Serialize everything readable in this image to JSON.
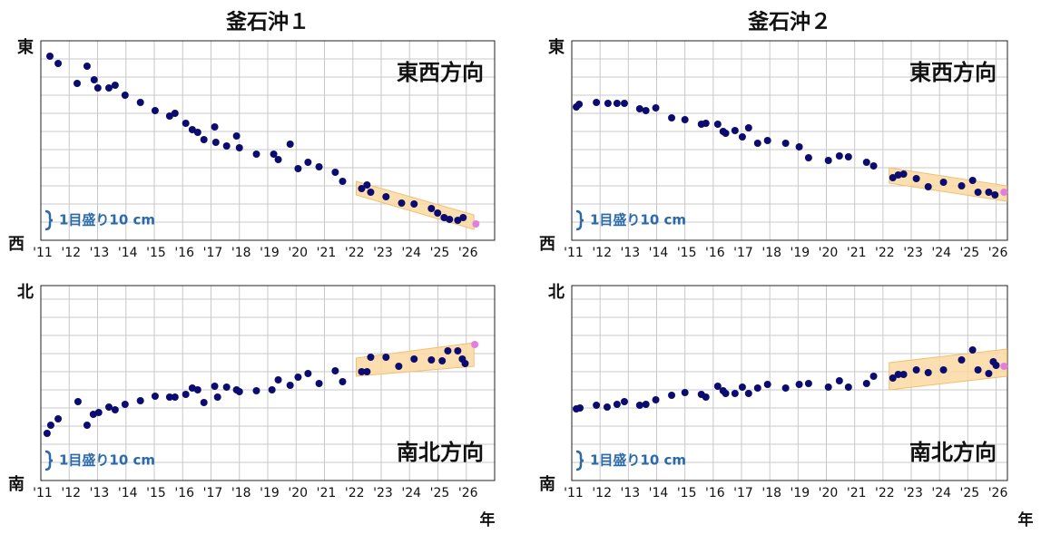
{
  "chart_data": [
    {
      "type": "scatter",
      "title": "釜石沖１",
      "y_top_label": "東",
      "y_bottom_label": "西",
      "annotation": "東西方向",
      "scale_note": "1目盛り10 cm",
      "xlim": [
        2011,
        2027
      ],
      "xticks": [
        {
          "value": 2011,
          "label": "'11"
        },
        {
          "value": 2012,
          "label": "'12"
        },
        {
          "value": 2013,
          "label": "'13"
        },
        {
          "value": 2014,
          "label": "'14"
        },
        {
          "value": 2015,
          "label": "'15"
        },
        {
          "value": 2016,
          "label": "'16"
        },
        {
          "value": 2017,
          "label": "'17"
        },
        {
          "value": 2018,
          "label": "'18"
        },
        {
          "value": 2019,
          "label": "'19"
        },
        {
          "value": 2020,
          "label": "'20"
        },
        {
          "value": 2021,
          "label": "'21"
        },
        {
          "value": 2022,
          "label": "'22"
        },
        {
          "value": 2023,
          "label": "'23"
        },
        {
          "value": 2024,
          "label": "'24"
        },
        {
          "value": 2025,
          "label": "'25"
        },
        {
          "value": 2026,
          "label": "'26"
        }
      ],
      "ylim": [
        0,
        110
      ],
      "yticks": [
        0,
        10,
        20,
        30,
        40,
        50,
        60,
        70,
        80,
        90,
        100,
        110
      ],
      "grid": true,
      "band": {
        "color": "#fbd9a3",
        "x": [
          2022.12,
          2026.27
        ],
        "upper": [
          32.5,
          14
        ],
        "lower": [
          25,
          6
        ]
      },
      "series": [
        {
          "color": "#0c0c70",
          "x": [
            2011.32,
            2011.61,
            2012.28,
            2012.63,
            2012.88,
            2013.01,
            2013.4,
            2013.62,
            2013.97,
            2014.51,
            2015.03,
            2015.54,
            2015.73,
            2016.11,
            2016.34,
            2016.53,
            2016.75,
            2017.13,
            2017.17,
            2017.55,
            2017.9,
            2018.0,
            2018.6,
            2019.21,
            2019.37,
            2019.79,
            2020.07,
            2020.42,
            2020.81,
            2021.38,
            2021.64,
            2022.31,
            2022.5,
            2022.63,
            2023.17,
            2023.72,
            2024.16,
            2024.77,
            2024.99,
            2025.22,
            2025.41,
            2025.7,
            2025.89
          ],
          "values": [
            101.5,
            97.5,
            86.5,
            96,
            88.5,
            84,
            84,
            85.5,
            80,
            76,
            71.5,
            68.5,
            70,
            64.5,
            61,
            59.5,
            55.5,
            62.5,
            54,
            52,
            57.5,
            51,
            47.5,
            47.5,
            44.5,
            53,
            39.5,
            43,
            40.5,
            37.5,
            32.5,
            28.5,
            30.5,
            26.5,
            24,
            20.5,
            20,
            17.5,
            15,
            12.5,
            11.5,
            11,
            12.5
          ]
        },
        {
          "color": "#e07fe0",
          "x": [
            2026.34
          ],
          "values": [
            9
          ]
        }
      ]
    },
    {
      "type": "scatter",
      "title": "釜石沖２",
      "y_top_label": "東",
      "y_bottom_label": "西",
      "annotation": "東西方向",
      "scale_note": "1目盛り10 cm",
      "xlim": [
        2011,
        2026.4
      ],
      "xticks": [
        {
          "value": 2011,
          "label": "'11"
        },
        {
          "value": 2012,
          "label": "'12"
        },
        {
          "value": 2013,
          "label": "'13"
        },
        {
          "value": 2014,
          "label": "'14"
        },
        {
          "value": 2015,
          "label": "'15"
        },
        {
          "value": 2016,
          "label": "'16"
        },
        {
          "value": 2017,
          "label": "'17"
        },
        {
          "value": 2018,
          "label": "'18"
        },
        {
          "value": 2019,
          "label": "'19"
        },
        {
          "value": 2020,
          "label": "'20"
        },
        {
          "value": 2021,
          "label": "'21"
        },
        {
          "value": 2022,
          "label": "'22"
        },
        {
          "value": 2023,
          "label": "'23"
        },
        {
          "value": 2024,
          "label": "'24"
        },
        {
          "value": 2025,
          "label": "'25"
        },
        {
          "value": 2026,
          "label": "'26"
        }
      ],
      "ylim": [
        0,
        110
      ],
      "yticks": [
        0,
        10,
        20,
        30,
        40,
        50,
        60,
        70,
        80,
        90,
        100,
        110
      ],
      "grid": true,
      "band": {
        "color": "#fbd9a3",
        "x": [
          2022.22,
          2026.38
        ],
        "upper": [
          40,
          30
        ],
        "lower": [
          31.5,
          21.5
        ]
      },
      "series": [
        {
          "color": "#0c0c70",
          "x": [
            2011.16,
            2011.26,
            2011.87,
            2012.28,
            2012.6,
            2012.86,
            2013.4,
            2013.62,
            2013.97,
            2014.53,
            2015.0,
            2015.58,
            2015.74,
            2016.16,
            2016.35,
            2016.44,
            2016.77,
            2017.03,
            2017.25,
            2017.57,
            2017.92,
            2018.56,
            2019.04,
            2019.37,
            2020.07,
            2020.46,
            2020.78,
            2021.42,
            2021.67,
            2022.35,
            2022.54,
            2022.73,
            2023.18,
            2023.6,
            2024.14,
            2024.78,
            2025.17,
            2025.36,
            2025.74,
            2025.96
          ],
          "values": [
            73.5,
            75,
            76,
            75.5,
            75.5,
            75.5,
            72.5,
            71.5,
            73,
            67.5,
            66.5,
            64,
            64.5,
            64,
            60,
            59,
            60.5,
            57,
            62,
            53.5,
            55,
            53.5,
            51.5,
            45.5,
            44,
            46.5,
            46,
            43,
            41,
            34.5,
            36,
            36.5,
            34,
            29.5,
            32,
            30,
            33,
            26.5,
            26.5,
            25
          ]
        },
        {
          "color": "#e07fe0",
          "x": [
            2026.28
          ],
          "values": [
            26.5
          ]
        }
      ]
    },
    {
      "type": "scatter",
      "y_top_label": "北",
      "y_bottom_label": "南",
      "annotation": "南北方向",
      "scale_note": "1目盛り10 cm",
      "xlabel": "年",
      "xlim": [
        2011,
        2027
      ],
      "xticks": [
        {
          "value": 2011,
          "label": "'11"
        },
        {
          "value": 2012,
          "label": "'12"
        },
        {
          "value": 2013,
          "label": "'13"
        },
        {
          "value": 2014,
          "label": "'14"
        },
        {
          "value": 2015,
          "label": "'15"
        },
        {
          "value": 2016,
          "label": "'16"
        },
        {
          "value": 2017,
          "label": "'17"
        },
        {
          "value": 2018,
          "label": "'18"
        },
        {
          "value": 2019,
          "label": "'19"
        },
        {
          "value": 2020,
          "label": "'20"
        },
        {
          "value": 2021,
          "label": "'21"
        },
        {
          "value": 2022,
          "label": "'22"
        },
        {
          "value": 2023,
          "label": "'23"
        },
        {
          "value": 2024,
          "label": "'24"
        },
        {
          "value": 2025,
          "label": "'25"
        },
        {
          "value": 2026,
          "label": "'26"
        }
      ],
      "ylim": [
        0,
        107.5
      ],
      "yticks": [
        0,
        10,
        20,
        30,
        40,
        50,
        60,
        70,
        80,
        90,
        100
      ],
      "grid": true,
      "band": {
        "color": "#fbd9a3",
        "x": [
          2022.12,
          2026.27
        ],
        "upper": [
          67.5,
          76
        ],
        "lower": [
          57.5,
          63
        ]
      },
      "series": [
        {
          "color": "#0c0c70",
          "x": [
            2011.22,
            2011.35,
            2011.61,
            2012.31,
            2012.63,
            2012.85,
            2013.04,
            2013.4,
            2013.62,
            2013.97,
            2014.51,
            2015.03,
            2015.54,
            2015.73,
            2016.11,
            2016.34,
            2016.53,
            2016.75,
            2017.13,
            2017.23,
            2017.55,
            2017.9,
            2018.0,
            2018.6,
            2019.15,
            2019.37,
            2019.79,
            2020.07,
            2020.42,
            2020.81,
            2021.38,
            2021.64,
            2022.31,
            2022.5,
            2022.63,
            2023.17,
            2023.62,
            2024.16,
            2024.77,
            2025.15,
            2025.35,
            2025.7,
            2025.86,
            2025.96
          ],
          "values": [
            26,
            30.5,
            34,
            43.5,
            30.5,
            36.5,
            37.5,
            40.5,
            39,
            42,
            44,
            46.5,
            46,
            46,
            47.5,
            51,
            50,
            43,
            52,
            46,
            51.5,
            50,
            49,
            49.5,
            50,
            55.5,
            52.5,
            57,
            59,
            53.5,
            60.5,
            54.5,
            60,
            60,
            68,
            68,
            63,
            67,
            66.5,
            66,
            71.5,
            71.5,
            67,
            64.5
          ]
        },
        {
          "color": "#e07fe0",
          "x": [
            2026.3
          ],
          "values": [
            75
          ]
        }
      ]
    },
    {
      "type": "scatter",
      "y_top_label": "北",
      "y_bottom_label": "南",
      "annotation": "南北方向",
      "scale_note": "1目盛り10 cm",
      "xlabel": "年",
      "xlim": [
        2011,
        2026.4
      ],
      "xticks": [
        {
          "value": 2011,
          "label": "'11"
        },
        {
          "value": 2012,
          "label": "'12"
        },
        {
          "value": 2013,
          "label": "'13"
        },
        {
          "value": 2014,
          "label": "'14"
        },
        {
          "value": 2015,
          "label": "'15"
        },
        {
          "value": 2016,
          "label": "'16"
        },
        {
          "value": 2017,
          "label": "'17"
        },
        {
          "value": 2018,
          "label": "'18"
        },
        {
          "value": 2019,
          "label": "'19"
        },
        {
          "value": 2020,
          "label": "'20"
        },
        {
          "value": 2021,
          "label": "'21"
        },
        {
          "value": 2022,
          "label": "'22"
        },
        {
          "value": 2023,
          "label": "'23"
        },
        {
          "value": 2024,
          "label": "'24"
        },
        {
          "value": 2025,
          "label": "'25"
        },
        {
          "value": 2026,
          "label": "'26"
        }
      ],
      "ylim": [
        0,
        107.5
      ],
      "yticks": [
        0,
        10,
        20,
        30,
        40,
        50,
        60,
        70,
        80,
        90,
        100
      ],
      "grid": true,
      "band": {
        "color": "#fbd9a3",
        "x": [
          2022.22,
          2026.38
        ],
        "upper": [
          65,
          72.5
        ],
        "lower": [
          50,
          57.5
        ]
      },
      "series": [
        {
          "color": "#0c0c70",
          "x": [
            2011.16,
            2011.29,
            2011.87,
            2012.25,
            2012.6,
            2012.86,
            2013.4,
            2013.62,
            2013.97,
            2014.53,
            2015.0,
            2015.58,
            2015.74,
            2016.16,
            2016.35,
            2016.44,
            2016.77,
            2017.03,
            2017.25,
            2017.57,
            2017.92,
            2018.56,
            2019.04,
            2019.37,
            2020.07,
            2020.46,
            2020.78,
            2021.42,
            2021.67,
            2022.35,
            2022.54,
            2022.73,
            2023.18,
            2023.6,
            2024.14,
            2024.78,
            2025.17,
            2025.36,
            2025.74,
            2025.9,
            2026.0
          ],
          "values": [
            39.5,
            40,
            41.5,
            40.5,
            42,
            43.5,
            41.5,
            42,
            44.5,
            47,
            48.5,
            47.5,
            46,
            52,
            49.5,
            48,
            48,
            51.5,
            48,
            51,
            53,
            51,
            53,
            53.5,
            51.5,
            55,
            51.5,
            53.5,
            57.5,
            56.5,
            58.5,
            58.5,
            61,
            59.5,
            61,
            66.5,
            72,
            61,
            59,
            65.5,
            63.5
          ]
        },
        {
          "color": "#e07fe0",
          "x": [
            2026.28
          ],
          "values": [
            63
          ]
        }
      ]
    }
  ]
}
